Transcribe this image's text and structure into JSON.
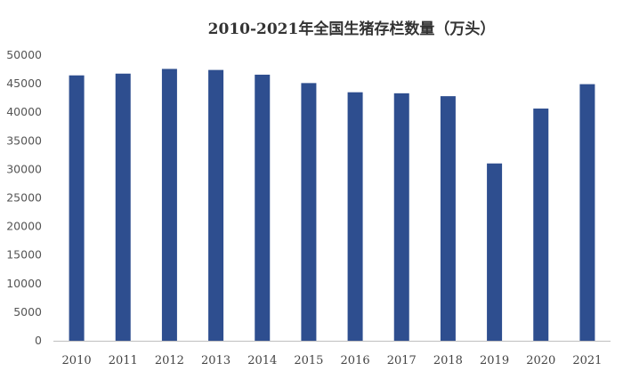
{
  "chart_data": {
    "type": "bar",
    "title": "2010-2021年全国生猪存栏数量（万头）",
    "xlabel": "",
    "ylabel": "",
    "categories": [
      "2010",
      "2011",
      "2012",
      "2013",
      "2014",
      "2015",
      "2016",
      "2017",
      "2018",
      "2019",
      "2020",
      "2021"
    ],
    "values": [
      46460,
      46767,
      47592,
      47411,
      46583,
      45113,
      43504,
      43325,
      42817,
      31041,
      40650,
      44922
    ],
    "ylim": [
      0,
      50000
    ],
    "yticks": [
      0,
      5000,
      10000,
      15000,
      20000,
      25000,
      30000,
      35000,
      40000,
      45000,
      50000
    ],
    "grid": false,
    "legend": "none",
    "bar_color": "#2E4E8F"
  }
}
